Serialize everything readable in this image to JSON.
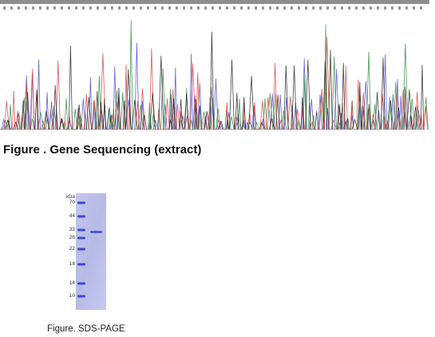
{
  "figures": {
    "sequencing": {
      "caption": "Figure . Gene Sequencing (extract)",
      "trace_colors": [
        "#4a4ac8",
        "#2e8b3c",
        "#d94040",
        "#222222"
      ],
      "header_bar_color": "#8e8e8e"
    },
    "sds_page": {
      "caption": "Figure. SDS-PAGE",
      "unit_label": "kDa",
      "marker_labels": [
        "70",
        "44",
        "33",
        "26",
        "22",
        "18",
        "14",
        "10"
      ],
      "gel_color": "#b9bde6",
      "marker_band_color": "#3d49c9"
    }
  }
}
